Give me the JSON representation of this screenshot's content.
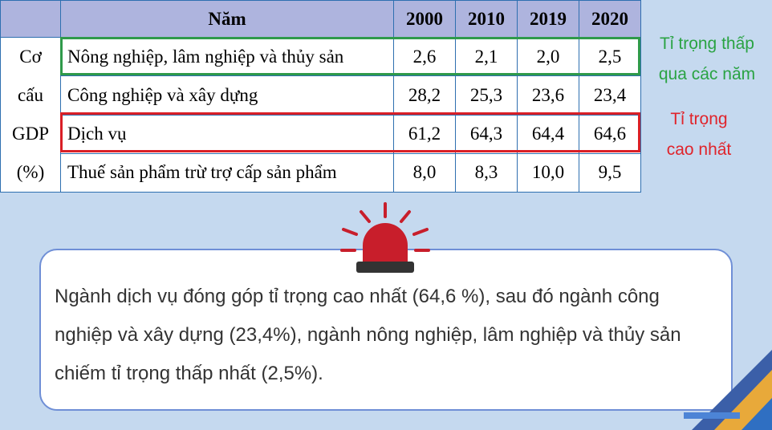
{
  "table": {
    "header": [
      "Năm",
      "2000",
      "2010",
      "2019",
      "2020"
    ],
    "row_group_label": [
      "Cơ",
      "cấu",
      "GDP",
      "(%)"
    ],
    "rows": [
      {
        "name": "Nông nghiệp, lâm nghiệp và thủy sản",
        "values": [
          "2,6",
          "2,1",
          "2,0",
          "2,5"
        ]
      },
      {
        "name": "Công nghiệp và xây dựng",
        "values": [
          "28,2",
          "25,3",
          "23,6",
          "23,4"
        ]
      },
      {
        "name": "Dịch vụ",
        "values": [
          "61,2",
          "64,3",
          "64,4",
          "64,6"
        ]
      },
      {
        "name": "Thuế sản phẩm trừ trợ cấp sản phẩm",
        "values": [
          "8,0",
          "8,3",
          "10,0",
          "9,5"
        ]
      }
    ]
  },
  "notes": {
    "low": [
      "Tỉ trọng thấp",
      "qua các năm"
    ],
    "high": [
      "Tỉ trọng",
      "cao nhất"
    ]
  },
  "callout": {
    "text": "Ngành dịch vụ đóng góp tỉ trọng cao nhất (64,6 %), sau đó ngành công nghiệp và xây dựng (23,4%), ngành nông nghiệp, lâm nghiệp và thủy sản chiếm tỉ trọng thấp nhất (2,5%)."
  },
  "colors": {
    "background": "#c5d9ef",
    "header_fill": "#aeb4de",
    "green": "#2aa343",
    "red": "#e0242b",
    "siren": "#c81e2b"
  },
  "icons": [
    "siren-icon"
  ]
}
